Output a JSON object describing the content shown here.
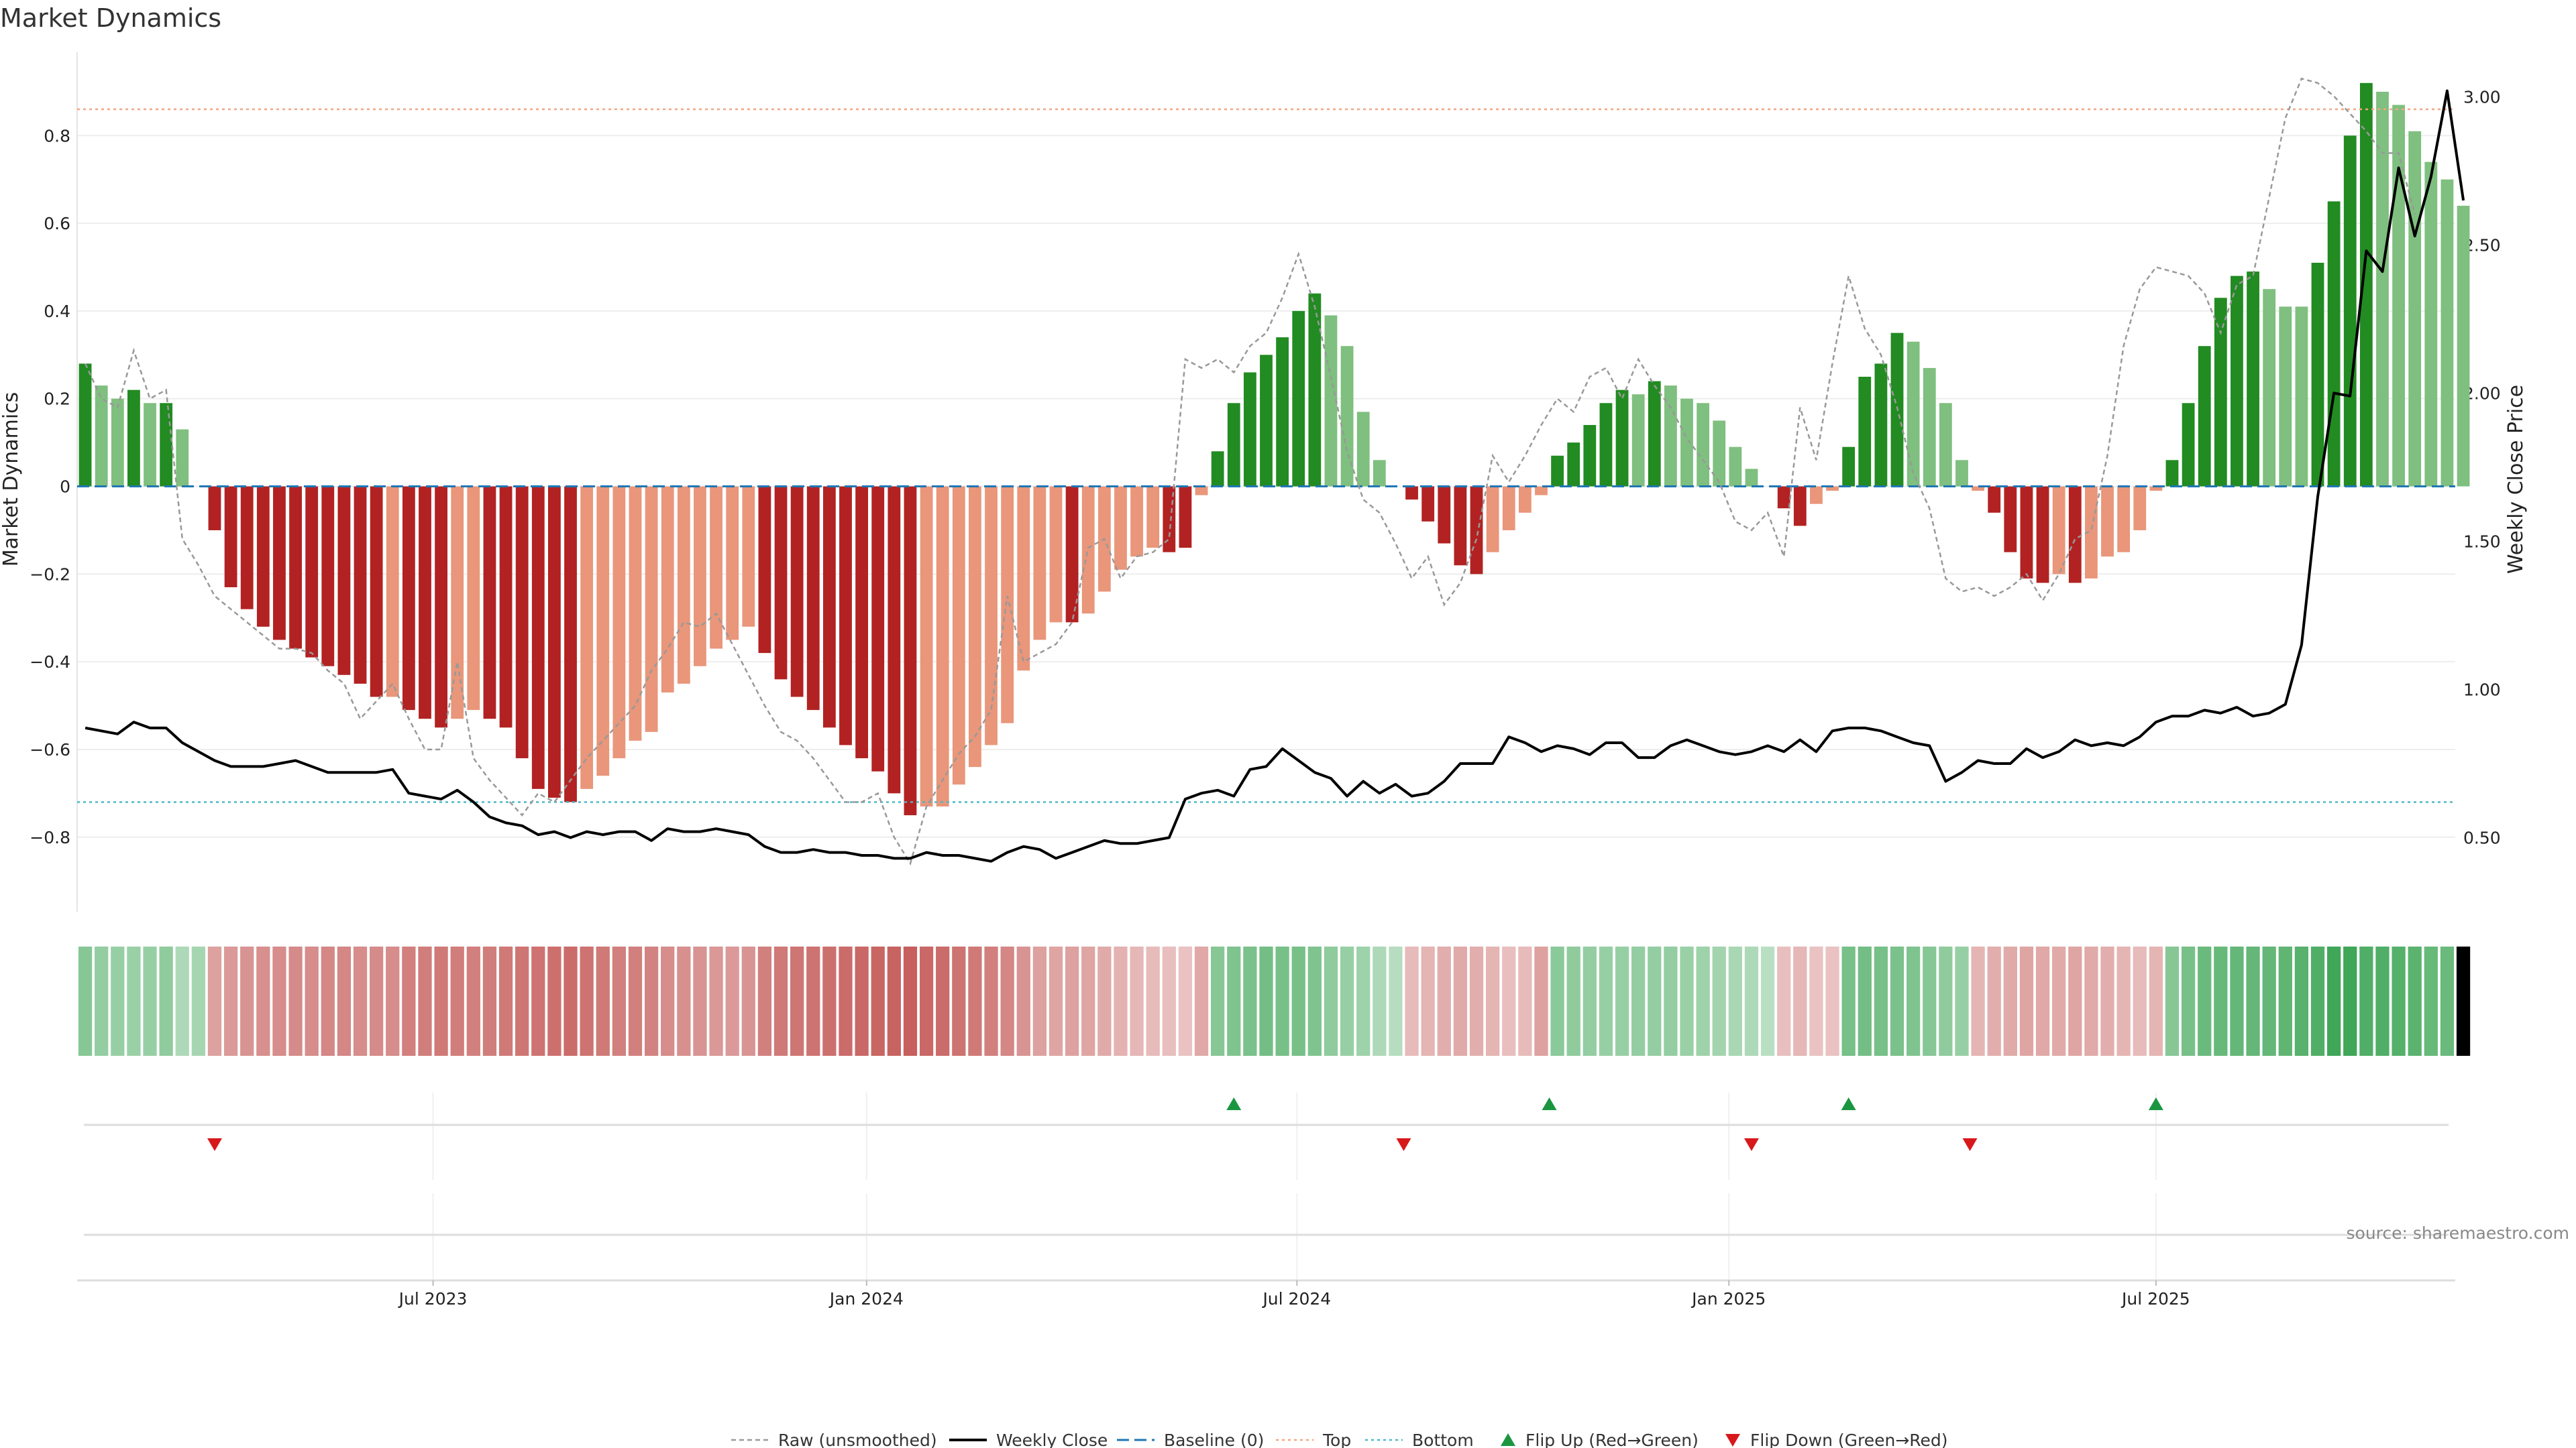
{
  "chart_data": {
    "type": "bar",
    "title": "Market Dynamics",
    "ylabel": "Market Dynamics",
    "ylabel_right": "Weekly Close Price",
    "ylim": [
      -0.97,
      0.99
    ],
    "ylim_right": [
      0.25,
      3.15
    ],
    "yticks": [
      -0.8,
      -0.6,
      -0.4,
      -0.2,
      0,
      0.2,
      0.4,
      0.6,
      0.8
    ],
    "ytick_labels": [
      "−0.8",
      "−0.6",
      "−0.4",
      "−0.2",
      "0",
      "0.2",
      "0.4",
      "0.6",
      "0.8"
    ],
    "yticks_right": [
      0.5,
      1.0,
      1.5,
      2.0,
      2.5,
      3.0
    ],
    "ytick_labels_right": [
      "0.50",
      "1.00",
      "1.50",
      "2.00",
      "2.50",
      "3.00"
    ],
    "x_range": [
      -0.5,
      146.5
    ],
    "x_ticks": [
      {
        "pos": 21.5,
        "label": "Jul 2023"
      },
      {
        "pos": 48.3,
        "label": "Jan 2024"
      },
      {
        "pos": 74.9,
        "label": "Jul 2024"
      },
      {
        "pos": 101.6,
        "label": "Jan 2025"
      },
      {
        "pos": 128.0,
        "label": "Jul 2025"
      }
    ],
    "top_line": 0.86,
    "bottom_line": -0.72,
    "source": "source: sharemaestro.com",
    "colors": {
      "strong_green": "#228b22",
      "weak_green": "#7fbf7f",
      "strong_red": "#b22222",
      "weak_red": "#e9967a",
      "raw": "#999999",
      "close": "#000000",
      "baseline": "#1f77b4",
      "top": "#f4a582",
      "bottom": "#4bb8c9",
      "flip_up": "#1a9641",
      "flip_down": "#d7191c",
      "grid": "#eeeeee"
    },
    "bar_values": [
      0.28,
      0.23,
      0.2,
      0.22,
      0.19,
      0.19,
      0.13,
      0.0,
      -0.1,
      -0.23,
      -0.28,
      -0.32,
      -0.35,
      -0.37,
      -0.39,
      -0.41,
      -0.43,
      -0.45,
      -0.48,
      -0.48,
      -0.51,
      -0.53,
      -0.55,
      -0.53,
      -0.51,
      -0.53,
      -0.55,
      -0.62,
      -0.69,
      -0.71,
      -0.72,
      -0.69,
      -0.66,
      -0.62,
      -0.58,
      -0.56,
      -0.47,
      -0.45,
      -0.41,
      -0.37,
      -0.35,
      -0.32,
      -0.38,
      -0.44,
      -0.48,
      -0.51,
      -0.55,
      -0.59,
      -0.62,
      -0.65,
      -0.7,
      -0.75,
      -0.73,
      -0.73,
      -0.68,
      -0.64,
      -0.59,
      -0.54,
      -0.42,
      -0.35,
      -0.31,
      -0.31,
      -0.29,
      -0.24,
      -0.19,
      -0.16,
      -0.14,
      -0.15,
      -0.14,
      -0.02,
      0.08,
      0.19,
      0.26,
      0.3,
      0.34,
      0.4,
      0.44,
      0.39,
      0.32,
      0.17,
      0.06,
      0.0,
      -0.03,
      -0.08,
      -0.13,
      -0.18,
      -0.2,
      -0.15,
      -0.1,
      -0.06,
      -0.02,
      0.07,
      0.1,
      0.14,
      0.19,
      0.22,
      0.21,
      0.24,
      0.23,
      0.2,
      0.19,
      0.15,
      0.09,
      0.04,
      0.0,
      -0.05,
      -0.09,
      -0.04,
      -0.01,
      0.09,
      0.25,
      0.28,
      0.35,
      0.33,
      0.27,
      0.19,
      0.06,
      -0.01,
      -0.06,
      -0.15,
      -0.21,
      -0.22,
      -0.2,
      -0.22,
      -0.21,
      -0.16,
      -0.15,
      -0.1,
      -0.01,
      0.06,
      0.19,
      0.32,
      0.43,
      0.48,
      0.49,
      0.45,
      0.41,
      0.41,
      0.51,
      0.65,
      0.8,
      0.92,
      0.9,
      0.87,
      0.81,
      0.74,
      0.7,
      0.64
    ],
    "bar_types": [
      "s",
      "w",
      "w",
      "s",
      "w",
      "s",
      "w",
      "s",
      "s",
      "s",
      "s",
      "s",
      "s",
      "s",
      "s",
      "s",
      "s",
      "s",
      "s",
      "w",
      "s",
      "s",
      "s",
      "w",
      "w",
      "s",
      "s",
      "s",
      "s",
      "s",
      "s",
      "w",
      "w",
      "w",
      "w",
      "w",
      "w",
      "w",
      "w",
      "w",
      "w",
      "w",
      "s",
      "s",
      "s",
      "s",
      "s",
      "s",
      "s",
      "s",
      "s",
      "s",
      "w",
      "w",
      "w",
      "w",
      "w",
      "w",
      "w",
      "w",
      "w",
      "s",
      "w",
      "w",
      "w",
      "w",
      "w",
      "s",
      "s",
      "w",
      "s",
      "s",
      "s",
      "s",
      "s",
      "s",
      "s",
      "w",
      "w",
      "w",
      "w",
      "s",
      "s",
      "s",
      "s",
      "s",
      "s",
      "w",
      "w",
      "w",
      "w",
      "s",
      "s",
      "s",
      "s",
      "s",
      "w",
      "s",
      "w",
      "w",
      "w",
      "w",
      "w",
      "w",
      "w",
      "s",
      "s",
      "w",
      "w",
      "s",
      "s",
      "s",
      "s",
      "w",
      "w",
      "w",
      "w",
      "w",
      "s",
      "s",
      "s",
      "s",
      "w",
      "s",
      "w",
      "w",
      "w",
      "w",
      "w",
      "s",
      "s",
      "s",
      "s",
      "s",
      "s",
      "w",
      "w",
      "w",
      "s",
      "s",
      "s",
      "s",
      "w",
      "w",
      "w",
      "w",
      "w",
      "w"
    ],
    "raw_values": [
      0.28,
      0.2,
      0.18,
      0.31,
      0.2,
      0.22,
      -0.12,
      -0.18,
      -0.25,
      -0.28,
      -0.31,
      -0.34,
      -0.37,
      -0.37,
      -0.38,
      -0.42,
      -0.45,
      -0.53,
      -0.49,
      -0.45,
      -0.53,
      -0.6,
      -0.6,
      -0.4,
      -0.62,
      -0.67,
      -0.71,
      -0.75,
      -0.7,
      -0.72,
      -0.67,
      -0.62,
      -0.58,
      -0.54,
      -0.5,
      -0.42,
      -0.37,
      -0.31,
      -0.32,
      -0.29,
      -0.36,
      -0.43,
      -0.5,
      -0.56,
      -0.58,
      -0.62,
      -0.67,
      -0.72,
      -0.72,
      -0.7,
      -0.8,
      -0.86,
      -0.73,
      -0.67,
      -0.61,
      -0.57,
      -0.51,
      -0.25,
      -0.4,
      -0.38,
      -0.36,
      -0.31,
      -0.14,
      -0.12,
      -0.21,
      -0.16,
      -0.15,
      -0.12,
      0.29,
      0.27,
      0.29,
      0.26,
      0.32,
      0.35,
      0.43,
      0.53,
      0.41,
      0.25,
      0.08,
      -0.03,
      -0.06,
      -0.13,
      -0.21,
      -0.16,
      -0.27,
      -0.22,
      -0.12,
      0.07,
      0.01,
      0.07,
      0.14,
      0.2,
      0.17,
      0.25,
      0.27,
      0.2,
      0.29,
      0.23,
      0.18,
      0.11,
      0.06,
      0.01,
      -0.08,
      -0.1,
      -0.06,
      -0.16,
      0.18,
      0.06,
      0.28,
      0.48,
      0.36,
      0.3,
      0.18,
      0.03,
      -0.05,
      -0.21,
      -0.24,
      -0.23,
      -0.25,
      -0.23,
      -0.2,
      -0.26,
      -0.2,
      -0.12,
      -0.1,
      0.07,
      0.32,
      0.45,
      0.5,
      0.49,
      0.48,
      0.44,
      0.35,
      0.46,
      0.48,
      0.66,
      0.84,
      0.93,
      0.92,
      0.89,
      0.85,
      0.81,
      0.76,
      0.76,
      0.62
    ]
  },
  "close_values": [
    0.87,
    0.86,
    0.85,
    0.89,
    0.87,
    0.87,
    0.82,
    0.79,
    0.76,
    0.74,
    0.74,
    0.74,
    0.75,
    0.76,
    0.74,
    0.72,
    0.72,
    0.72,
    0.72,
    0.73,
    0.65,
    0.64,
    0.63,
    0.66,
    0.62,
    0.57,
    0.55,
    0.54,
    0.51,
    0.52,
    0.5,
    0.52,
    0.51,
    0.52,
    0.52,
    0.49,
    0.53,
    0.52,
    0.52,
    0.53,
    0.52,
    0.51,
    0.47,
    0.45,
    0.45,
    0.46,
    0.45,
    0.45,
    0.44,
    0.44,
    0.43,
    0.43,
    0.45,
    0.44,
    0.44,
    0.43,
    0.42,
    0.45,
    0.47,
    0.46,
    0.43,
    0.45,
    0.47,
    0.49,
    0.48,
    0.48,
    0.49,
    0.5,
    0.63,
    0.65,
    0.66,
    0.64,
    0.73,
    0.74,
    0.8,
    0.76,
    0.72,
    0.7,
    0.64,
    0.69,
    0.65,
    0.68,
    0.64,
    0.65,
    0.69,
    0.75,
    0.75,
    0.75,
    0.84,
    0.82,
    0.79,
    0.81,
    0.8,
    0.78,
    0.82,
    0.82,
    0.77,
    0.77,
    0.81,
    0.83,
    0.81,
    0.79,
    0.78,
    0.79,
    0.81,
    0.79,
    0.83,
    0.79,
    0.86,
    0.87,
    0.87,
    0.86,
    0.84,
    0.82,
    0.81,
    0.69,
    0.72,
    0.76,
    0.75,
    0.75,
    0.8,
    0.77,
    0.79,
    0.83,
    0.81,
    0.82,
    0.81,
    0.84,
    0.89,
    0.91,
    0.91,
    0.93,
    0.92,
    0.94,
    0.91,
    0.92,
    0.95,
    1.15,
    1.65,
    2.0,
    1.99,
    2.48,
    2.41,
    2.76,
    2.53,
    2.73,
    3.02,
    2.65
  ],
  "strip": {
    "intensity_values": [
      0.5,
      0.42,
      0.4,
      0.38,
      0.4,
      0.45,
      0.25,
      0.3,
      0.45,
      0.5,
      0.55,
      0.58,
      0.6,
      0.62,
      0.6,
      0.65,
      0.65,
      0.6,
      0.62,
      0.6,
      0.7,
      0.72,
      0.75,
      0.72,
      0.7,
      0.72,
      0.75,
      0.78,
      0.8,
      0.82,
      0.85,
      0.8,
      0.75,
      0.7,
      0.7,
      0.68,
      0.6,
      0.58,
      0.55,
      0.52,
      0.5,
      0.55,
      0.7,
      0.75,
      0.78,
      0.8,
      0.82,
      0.85,
      0.88,
      0.9,
      0.92,
      0.95,
      0.88,
      0.85,
      0.8,
      0.75,
      0.7,
      0.65,
      0.55,
      0.45,
      0.42,
      0.45,
      0.42,
      0.38,
      0.32,
      0.28,
      0.25,
      0.22,
      0.2,
      0.4,
      0.5,
      0.55,
      0.58,
      0.62,
      0.6,
      0.6,
      0.55,
      0.45,
      0.4,
      0.35,
      0.25,
      0.2,
      0.25,
      0.3,
      0.35,
      0.38,
      0.35,
      0.3,
      0.22,
      0.25,
      0.45,
      0.48,
      0.45,
      0.42,
      0.4,
      0.4,
      0.42,
      0.42,
      0.42,
      0.38,
      0.35,
      0.32,
      0.28,
      0.25,
      0.18,
      0.22,
      0.28,
      0.2,
      0.2,
      0.6,
      0.62,
      0.6,
      0.58,
      0.55,
      0.5,
      0.45,
      0.4,
      0.3,
      0.35,
      0.38,
      0.42,
      0.4,
      0.38,
      0.42,
      0.38,
      0.35,
      0.3,
      0.25,
      0.3,
      0.5,
      0.6,
      0.68,
      0.7,
      0.72,
      0.72,
      0.72,
      0.75,
      0.8,
      0.85,
      0.95,
      0.95,
      0.85,
      0.85,
      0.82,
      0.78,
      0.7,
      0.68
    ]
  },
  "flips": {
    "up": [
      71,
      90.5,
      109,
      128
    ],
    "down": [
      8,
      81.5,
      103,
      116.5
    ]
  },
  "legend": [
    {
      "key": "raw",
      "label": "Raw (unsmoothed)"
    },
    {
      "key": "close",
      "label": "Weekly Close"
    },
    {
      "key": "baseline",
      "label": "Baseline (0)"
    },
    {
      "key": "top",
      "label": "Top"
    },
    {
      "key": "bottom",
      "label": "Bottom"
    },
    {
      "key": "flip_up",
      "label": "Flip Up (Red→Green)"
    },
    {
      "key": "flip_down",
      "label": "Flip Down (Green→Red)"
    }
  ]
}
